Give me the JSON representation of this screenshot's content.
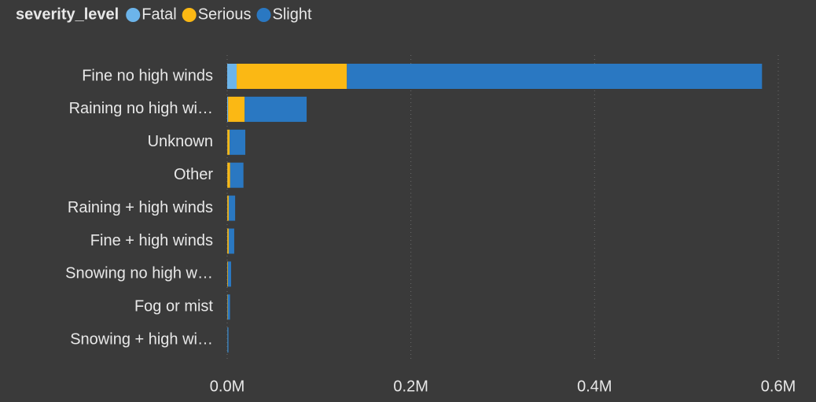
{
  "chart_data": {
    "type": "stacked_bar_horizontal",
    "legend_title": "severity_level",
    "categories": [
      "Fine no high winds",
      "Raining no high wi…",
      "Unknown",
      "Other",
      "Raining + high winds",
      "Fine + high winds",
      "Snowing no high w…",
      "Fog or mist",
      "Snowing + high wi…"
    ],
    "series": [
      {
        "name": "Fatal",
        "color": "#6cb4ea",
        "values": [
          10300,
          1000,
          200,
          200,
          150,
          150,
          50,
          70,
          20
        ]
      },
      {
        "name": "Serious",
        "color": "#fbb814",
        "values": [
          120000,
          18000,
          2500,
          3000,
          1500,
          1500,
          700,
          500,
          200
        ]
      },
      {
        "name": "Slight",
        "color": "#2a78c2",
        "values": [
          452000,
          67500,
          17000,
          14500,
          7000,
          6000,
          3500,
          2500,
          1200
        ]
      }
    ],
    "xlim": [
      0,
      600000
    ],
    "xticks": [
      {
        "value": 0,
        "label": "0.0M"
      },
      {
        "value": 200000,
        "label": "0.2M"
      },
      {
        "value": 400000,
        "label": "0.4M"
      },
      {
        "value": 600000,
        "label": "0.6M"
      }
    ],
    "grid": true,
    "legend_position": "top-left"
  }
}
